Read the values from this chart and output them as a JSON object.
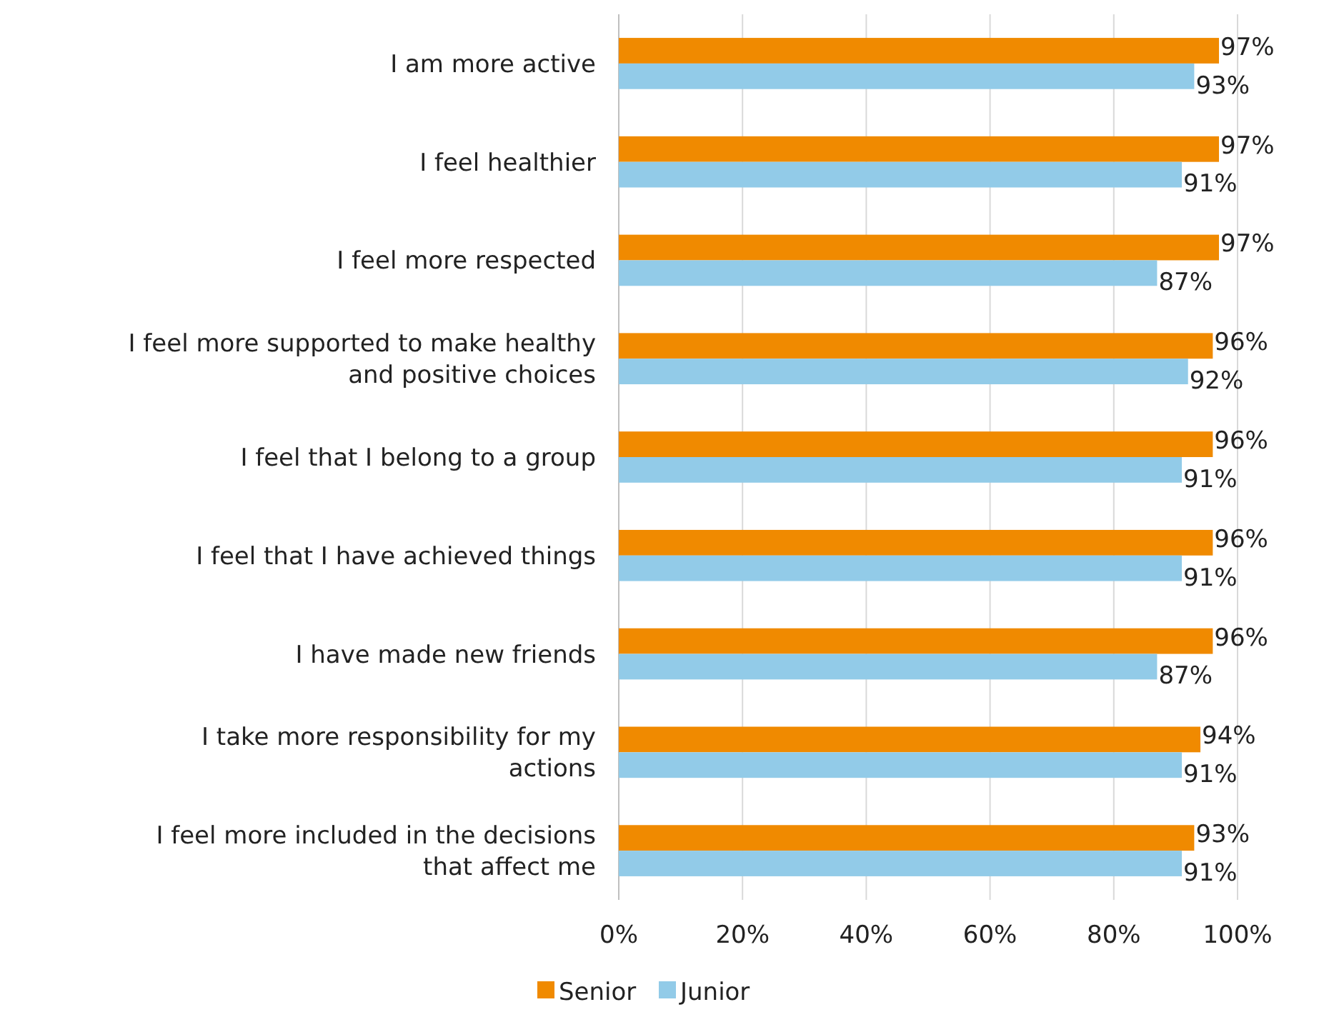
{
  "chart_data": {
    "type": "bar",
    "orientation": "horizontal",
    "categories": [
      "I am more active",
      "I feel healthier",
      "I feel more respected",
      "I feel more supported to make healthy and positive choices",
      "I feel that I belong to a group",
      "I feel that I have achieved things",
      "I have made new friends",
      "I take more responsibility for my actions",
      "I feel more included in the decisions that affect me"
    ],
    "series": [
      {
        "name": "Senior",
        "color": "#f08a00",
        "values": [
          97,
          97,
          97,
          96,
          96,
          96,
          96,
          94,
          93
        ],
        "value_labels": [
          "97%",
          "97%",
          "97%",
          "96%",
          "96%",
          "96%",
          "96%",
          "94%",
          "93%"
        ]
      },
      {
        "name": "Junior",
        "color": "#92cbe8",
        "values": [
          93,
          91,
          87,
          92,
          91,
          91,
          87,
          91,
          91
        ],
        "value_labels": [
          "93%",
          "91%",
          "87%",
          "92%",
          "91%",
          "91%",
          "87%",
          "91%",
          "91%"
        ]
      }
    ],
    "xlim": [
      0,
      100
    ],
    "xticks": [
      {
        "value": 0,
        "label": "0%"
      },
      {
        "value": 20,
        "label": "20%"
      },
      {
        "value": 40,
        "label": "40%"
      },
      {
        "value": 60,
        "label": "60%"
      },
      {
        "value": 80,
        "label": "80%"
      },
      {
        "value": 100,
        "label": "100%"
      }
    ],
    "grid": "x",
    "legend": "bottom"
  }
}
